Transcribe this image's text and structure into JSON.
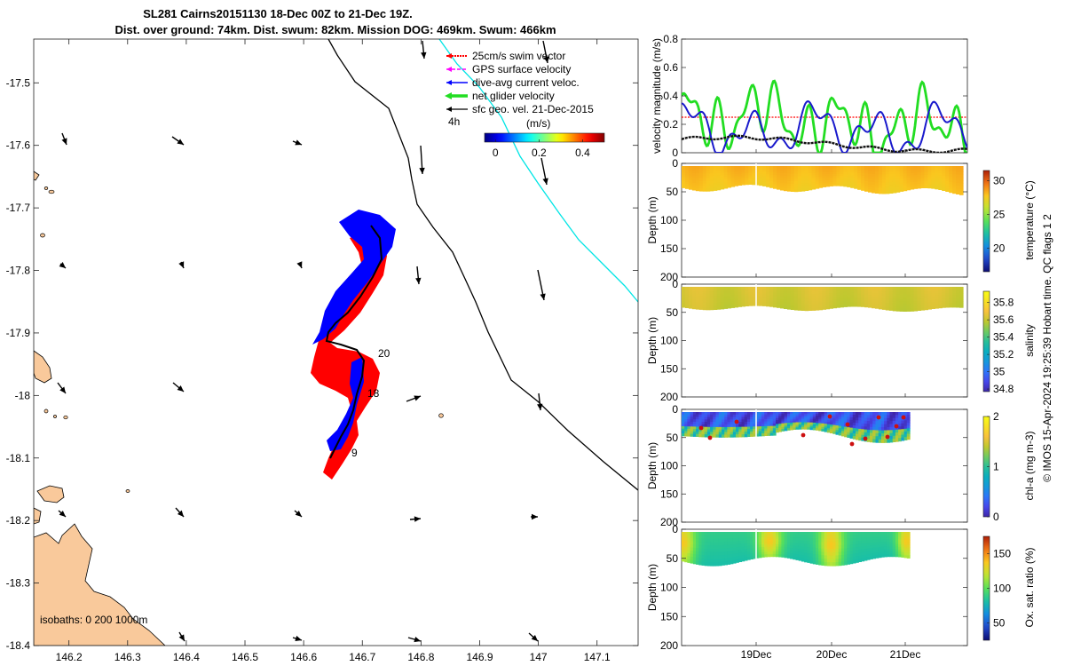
{
  "title_line1": "SL281 Cairns20151130 18-Dec 00Z to 21-Dec 19Z.",
  "title_line2": "Dist. over ground: 74km. Dist. swum: 82km. Mission DOG: 469km. Swum: 466km",
  "copyright": "© IMOS 15-Apr-2024 19:25:39 Hobart time. QC flags 1  2",
  "colors": {
    "land": "#f9c99b",
    "track_red": "#ff0000",
    "track_blue": "#0000ff",
    "cyan": "#00e5e5",
    "velocity_green": "#22dd22",
    "velocity_blue": "#1a1acc"
  },
  "chart_data": [
    {
      "type": "map",
      "xticks": [
        "146.2",
        "146.3",
        "146.4",
        "146.5",
        "146.6",
        "146.7",
        "146.8",
        "146.9",
        "147",
        "147.1"
      ],
      "yticks": [
        "-17.5",
        "-17.6",
        "-17.7",
        "-17.8",
        "-17.9",
        "-18",
        "-18.1",
        "-18.2",
        "-18.3",
        "-18.4"
      ],
      "xlim": [
        146.14,
        147.17
      ],
      "ylim": [
        -18.4,
        -17.43
      ],
      "isobaths_label": "isobaths: 0   200  1000m",
      "legend": [
        {
          "label": "25cm/s swim vector",
          "color": "#ff0000",
          "style": "dotted"
        },
        {
          "label": "GPS surface velocity",
          "color": "#ff00ff",
          "style": "dashed"
        },
        {
          "label": "dive-avg current veloc.",
          "color": "#0000ff",
          "style": "solid"
        },
        {
          "label": "net glider velocity",
          "color": "#22dd22",
          "style": "thick"
        },
        {
          "label": "sfc geo. vel. 21-Dec-2015",
          "color": "#000000",
          "style": "solid"
        }
      ],
      "time_scale_label": "4h",
      "colorbar": {
        "label": "(m/s)",
        "ticks": [
          "0",
          "0.2",
          "0.4"
        ],
        "range": [
          -0.05,
          0.5
        ]
      },
      "track_labels": [
        "20",
        "18",
        "9"
      ]
    },
    {
      "type": "line",
      "ylabel": "velocity magnitude (m/s)",
      "yticks": [
        "0",
        "0.2",
        "0.4",
        "0.6",
        "0.8"
      ],
      "ylim": [
        0,
        0.8
      ],
      "xlim": [
        0,
        3.96
      ],
      "swim_speed": 0.25
    },
    {
      "type": "heatmap",
      "ylabel": "Depth (m)",
      "cbar_label": "temperature (°C)",
      "cbar_ticks": [
        "20",
        "25",
        "30"
      ],
      "cbar_range": [
        16.5,
        31.5
      ],
      "yticks": [
        "0",
        "50",
        "100",
        "150",
        "200"
      ]
    },
    {
      "type": "heatmap",
      "ylabel": "Depth (m)",
      "cbar_label": "salinity",
      "cbar_ticks": [
        "34.8",
        "35",
        "35.2",
        "35.4",
        "35.6",
        "35.8"
      ],
      "cbar_range": [
        34.77,
        35.93
      ],
      "yticks": [
        "0",
        "50",
        "100",
        "150",
        "200"
      ]
    },
    {
      "type": "heatmap",
      "ylabel": "Depth (m)",
      "cbar_label": "chl-a (mg m-3)",
      "cbar_ticks": [
        "0",
        "1",
        "2"
      ],
      "cbar_range": [
        0,
        2
      ],
      "yticks": [
        "0",
        "50",
        "100",
        "150",
        "200"
      ]
    },
    {
      "type": "heatmap",
      "ylabel": "Depth (m)",
      "cbar_label": "Ox. sat. ratio (%)",
      "cbar_ticks": [
        "50",
        "100",
        "150"
      ],
      "cbar_range": [
        25,
        175
      ],
      "yticks": [
        "0",
        "50",
        "100",
        "150",
        "200"
      ],
      "xticks": [
        "19Dec",
        "20Dec",
        "21Dec"
      ]
    }
  ]
}
